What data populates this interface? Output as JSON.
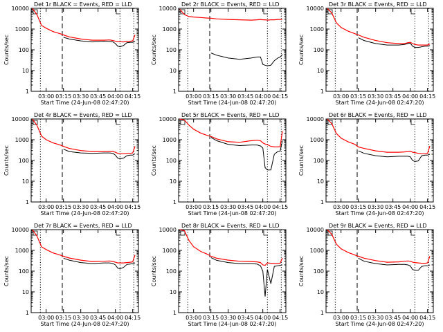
{
  "panel_titles": [
    "Det 1r BLACK = Events, RED = LLD",
    "Det 2r BLACK = Events, RED = LLD",
    "Det 3r BLACK = Events, RED = LLD",
    "Det 4r BLACK = Events, RED = LLD",
    "Det 5r BLACK = Events, RED = LLD",
    "Det 6r BLACK = Events, RED = LLD",
    "Det 7r BLACK = Events, RED = LLD",
    "Det 8r BLACK = Events, RED = LLD",
    "Det 9r BLACK = Events, RED = LLD"
  ],
  "xlabel": "Start Time (24-Jun-08 02:47:20)",
  "ylabel": "Counts/sec",
  "colors": {
    "events": "#000000",
    "lld": "#ff0000",
    "background": "#ffffff"
  },
  "chart_data": [
    {
      "type": "line",
      "title": "Det 1r BLACK = Events, RED = LLD",
      "xlabel": "Start Time (24-Jun-08 02:47:20)",
      "ylabel": "Counts/sec",
      "yscale": "log",
      "ylim": [
        1,
        10000
      ],
      "xticks": [
        "03:00",
        "03:15",
        "03:30",
        "03:45",
        "04:00",
        "04:15"
      ],
      "yticks": [
        "1",
        "10",
        "100",
        "1000",
        "10000"
      ],
      "vlines_dotted": [
        "02:55",
        "04:04",
        "04:16"
      ],
      "vlines_dashed": [
        "03:14"
      ],
      "x": [
        "02:48",
        "02:52",
        "02:56",
        "03:00",
        "03:06",
        "03:12",
        "03:15",
        "03:20",
        "03:30",
        "03:40",
        "03:50",
        "03:55",
        "03:58",
        "04:00",
        "04:02",
        "04:04",
        "04:07",
        "04:10",
        "04:13",
        "04:15",
        "04:17"
      ],
      "series": [
        {
          "name": "Events",
          "values": [
            null,
            null,
            null,
            null,
            null,
            null,
            400,
            330,
            270,
            240,
            260,
            250,
            240,
            200,
            150,
            140,
            160,
            220,
            230,
            230,
            250
          ]
        },
        {
          "name": "LLD",
          "values": [
            10000,
            5000,
            1500,
            1100,
            750,
            600,
            520,
            420,
            330,
            290,
            290,
            300,
            280,
            260,
            250,
            245,
            240,
            260,
            260,
            270,
            520
          ]
        }
      ]
    },
    {
      "type": "line",
      "title": "Det 2r BLACK = Events, RED = LLD",
      "xlabel": "Start Time (24-Jun-08 02:47:20)",
      "ylabel": "Counts/sec",
      "yscale": "log",
      "ylim": [
        1,
        10000
      ],
      "xticks": [
        "03:00",
        "03:15",
        "03:30",
        "03:45",
        "04:00",
        "04:15"
      ],
      "yticks": [
        "1",
        "10",
        "100",
        "1000",
        "10000"
      ],
      "vlines_dotted": [
        "02:55",
        "04:04",
        "04:16"
      ],
      "vlines_dashed": [
        "03:14"
      ],
      "x": [
        "02:48",
        "02:52",
        "02:56",
        "03:00",
        "03:06",
        "03:12",
        "03:15",
        "03:20",
        "03:30",
        "03:40",
        "03:50",
        "03:55",
        "03:58",
        "04:00",
        "04:02",
        "04:04",
        "04:07",
        "04:10",
        "04:13",
        "04:15",
        "04:17"
      ],
      "series": [
        {
          "name": "Events",
          "values": [
            null,
            null,
            null,
            null,
            null,
            null,
            70,
            55,
            40,
            35,
            40,
            45,
            45,
            20,
            18,
            17,
            18,
            30,
            40,
            45,
            60
          ]
        },
        {
          "name": "LLD",
          "values": [
            9000,
            5000,
            4000,
            3800,
            3600,
            3400,
            3300,
            3100,
            2900,
            2800,
            2700,
            2800,
            2900,
            2800,
            2800,
            2700,
            2800,
            2800,
            2900,
            2900,
            3000
          ]
        }
      ]
    },
    {
      "type": "line",
      "title": "Det 3r BLACK = Events, RED = LLD",
      "xlabel": "Start Time (24-Jun-08 02:47:20)",
      "ylabel": "Counts/sec",
      "yscale": "log",
      "ylim": [
        1,
        10000
      ],
      "xticks": [
        "03:00",
        "03:15",
        "03:30",
        "03:45",
        "04:00",
        "04:15"
      ],
      "yticks": [
        "1",
        "10",
        "100",
        "1000",
        "10000"
      ],
      "vlines_dotted": [
        "02:55",
        "04:04",
        "04:16"
      ],
      "vlines_dashed": [
        "03:14"
      ],
      "x": [
        "02:48",
        "02:52",
        "02:56",
        "03:00",
        "03:06",
        "03:12",
        "03:15",
        "03:20",
        "03:30",
        "03:40",
        "03:50",
        "03:55",
        "03:58",
        "04:00",
        "04:02",
        "04:04",
        "04:07",
        "04:10",
        "04:13",
        "04:15",
        "04:17"
      ],
      "series": [
        {
          "name": "Events",
          "values": [
            null,
            null,
            null,
            null,
            null,
            null,
            380,
            280,
            200,
            170,
            170,
            180,
            200,
            210,
            150,
            130,
            130,
            140,
            150,
            150,
            160
          ]
        },
        {
          "name": "LLD",
          "values": [
            10000,
            6000,
            2000,
            1200,
            800,
            600,
            520,
            400,
            280,
            220,
            200,
            200,
            220,
            230,
            200,
            180,
            170,
            170,
            170,
            170,
            190
          ]
        }
      ]
    },
    {
      "type": "line",
      "title": "Det 4r BLACK = Events, RED = LLD",
      "xlabel": "Start Time (24-Jun-08 02:47:20)",
      "ylabel": "Counts/sec",
      "yscale": "log",
      "ylim": [
        1,
        10000
      ],
      "xticks": [
        "03:00",
        "03:15",
        "03:30",
        "03:45",
        "04:00",
        "04:15"
      ],
      "yticks": [
        "1",
        "10",
        "100",
        "1000",
        "10000"
      ],
      "vlines_dotted": [
        "02:55",
        "04:04",
        "04:16"
      ],
      "vlines_dashed": [
        "03:14"
      ],
      "x": [
        "02:48",
        "02:52",
        "02:56",
        "03:00",
        "03:06",
        "03:12",
        "03:15",
        "03:20",
        "03:30",
        "03:40",
        "03:50",
        "03:55",
        "03:58",
        "04:00",
        "04:02",
        "04:04",
        "04:07",
        "04:10",
        "04:13",
        "04:15",
        "04:17"
      ],
      "series": [
        {
          "name": "Events",
          "values": [
            null,
            null,
            null,
            null,
            null,
            null,
            350,
            270,
            230,
            220,
            230,
            230,
            220,
            180,
            130,
            120,
            130,
            170,
            180,
            180,
            210
          ]
        },
        {
          "name": "LLD",
          "values": [
            10000,
            5000,
            1500,
            1000,
            700,
            560,
            480,
            380,
            300,
            270,
            270,
            280,
            270,
            250,
            220,
            210,
            210,
            220,
            220,
            230,
            480
          ]
        }
      ]
    },
    {
      "type": "line",
      "title": "Det 5r BLACK = Events, RED = LLD",
      "xlabel": "Start Time (24-Jun-08 02:47:20)",
      "ylabel": "Counts/sec",
      "yscale": "log",
      "ylim": [
        1,
        10000
      ],
      "xticks": [
        "03:00",
        "03:15",
        "03:30",
        "03:45",
        "04:00",
        "04:15"
      ],
      "yticks": [
        "1",
        "10",
        "100",
        "1000",
        "10000"
      ],
      "vlines_dotted": [
        "02:55",
        "04:04",
        "04:16"
      ],
      "vlines_dashed": [
        "03:14"
      ],
      "x": [
        "02:48",
        "02:52",
        "02:56",
        "03:00",
        "03:06",
        "03:12",
        "03:15",
        "03:20",
        "03:30",
        "03:40",
        "03:50",
        "03:55",
        "03:58",
        "04:00",
        "04:02",
        "04:04",
        "04:07",
        "04:10",
        "04:13",
        "04:15",
        "04:17"
      ],
      "series": [
        {
          "name": "Events",
          "values": [
            null,
            null,
            null,
            null,
            null,
            null,
            1300,
            900,
            600,
            520,
            560,
            560,
            500,
            400,
            45,
            35,
            35,
            200,
            270,
            280,
            900
          ]
        },
        {
          "name": "LLD",
          "values": [
            10000,
            9000,
            5000,
            3200,
            2100,
            1600,
            1450,
            1100,
            800,
            750,
            900,
            950,
            900,
            700,
            620,
            580,
            480,
            450,
            450,
            460,
            2600
          ]
        }
      ]
    },
    {
      "type": "line",
      "title": "Det 6r BLACK = Events, RED = LLD",
      "xlabel": "Start Time (24-Jun-08 02:47:20)",
      "ylabel": "Counts/sec",
      "yscale": "log",
      "ylim": [
        1,
        10000
      ],
      "xticks": [
        "03:00",
        "03:15",
        "03:30",
        "03:45",
        "04:00",
        "04:15"
      ],
      "yticks": [
        "1",
        "10",
        "100",
        "1000",
        "10000"
      ],
      "vlines_dotted": [
        "02:55",
        "04:04",
        "04:16"
      ],
      "vlines_dashed": [
        "03:14"
      ],
      "x": [
        "02:48",
        "02:52",
        "02:56",
        "03:00",
        "03:06",
        "03:12",
        "03:15",
        "03:20",
        "03:30",
        "03:40",
        "03:50",
        "03:55",
        "03:58",
        "04:00",
        "04:02",
        "04:04",
        "04:07",
        "04:10",
        "04:13",
        "04:15",
        "04:17"
      ],
      "series": [
        {
          "name": "Events",
          "values": [
            null,
            null,
            null,
            null,
            null,
            null,
            290,
            220,
            170,
            150,
            160,
            160,
            160,
            150,
            100,
            90,
            95,
            170,
            180,
            180,
            200
          ]
        },
        {
          "name": "LLD",
          "values": [
            10000,
            6000,
            2000,
            1200,
            800,
            600,
            450,
            380,
            290,
            250,
            250,
            260,
            270,
            280,
            250,
            240,
            220,
            210,
            210,
            220,
            500
          ]
        }
      ]
    },
    {
      "type": "line",
      "title": "Det 7r BLACK = Events, RED = LLD",
      "xlabel": "Start Time (24-Jun-08 02:47:20)",
      "ylabel": "Counts/sec",
      "yscale": "log",
      "ylim": [
        1,
        10000
      ],
      "xticks": [
        "03:00",
        "03:15",
        "03:30",
        "03:45",
        "04:00",
        "04:15"
      ],
      "yticks": [
        "1",
        "10",
        "100",
        "1000",
        "10000"
      ],
      "vlines_dotted": [
        "02:55",
        "04:04",
        "04:16"
      ],
      "vlines_dashed": [
        "03:14"
      ],
      "x": [
        "02:48",
        "02:52",
        "02:56",
        "03:00",
        "03:06",
        "03:12",
        "03:15",
        "03:20",
        "03:30",
        "03:40",
        "03:50",
        "03:55",
        "03:58",
        "04:00",
        "04:02",
        "04:04",
        "04:07",
        "04:10",
        "04:13",
        "04:15",
        "04:17"
      ],
      "series": [
        {
          "name": "Events",
          "values": [
            null,
            null,
            null,
            null,
            null,
            null,
            420,
            340,
            260,
            230,
            250,
            250,
            230,
            200,
            140,
            130,
            150,
            210,
            220,
            230,
            250
          ]
        },
        {
          "name": "LLD",
          "values": [
            10000,
            5000,
            1500,
            1100,
            750,
            600,
            520,
            430,
            340,
            290,
            300,
            310,
            290,
            270,
            250,
            250,
            250,
            260,
            270,
            280,
            600
          ]
        }
      ]
    },
    {
      "type": "line",
      "title": "Det 8r BLACK = Events, RED = LLD",
      "xlabel": "Start Time (24-Jun-08 02:47:20)",
      "ylabel": "Counts/sec",
      "yscale": "log",
      "ylim": [
        1,
        10000
      ],
      "xticks": [
        "03:00",
        "03:15",
        "03:30",
        "03:45",
        "04:00",
        "04:15"
      ],
      "yticks": [
        "1",
        "10",
        "100",
        "1000",
        "10000"
      ],
      "vlines_dotted": [
        "02:55",
        "04:04",
        "04:16"
      ],
      "vlines_dashed": [
        "03:14"
      ],
      "x": [
        "02:48",
        "02:52",
        "02:56",
        "03:00",
        "03:06",
        "03:12",
        "03:15",
        "03:20",
        "03:30",
        "03:40",
        "03:50",
        "03:55",
        "03:58",
        "04:00",
        "04:02",
        "04:04",
        "04:07",
        "04:10",
        "04:13",
        "04:15",
        "04:17"
      ],
      "series": [
        {
          "name": "Events",
          "values": [
            null,
            null,
            null,
            null,
            null,
            null,
            450,
            330,
            260,
            230,
            230,
            220,
            180,
            100,
            6,
            120,
            25,
            170,
            180,
            190,
            200
          ]
        },
        {
          "name": "LLD",
          "values": [
            10000,
            9000,
            3000,
            1500,
            900,
            650,
            520,
            420,
            340,
            300,
            290,
            280,
            260,
            200,
            190,
            250,
            240,
            230,
            230,
            240,
            430
          ]
        }
      ]
    },
    {
      "type": "line",
      "title": "Det 9r BLACK = Events, RED = LLD",
      "xlabel": "Start Time (24-Jun-08 02:47:20)",
      "ylabel": "Counts/sec",
      "yscale": "log",
      "ylim": [
        1,
        10000
      ],
      "xticks": [
        "03:00",
        "03:15",
        "03:30",
        "03:45",
        "04:00",
        "04:15"
      ],
      "yticks": [
        "1",
        "10",
        "100",
        "1000",
        "10000"
      ],
      "vlines_dotted": [
        "02:55",
        "04:04",
        "04:16"
      ],
      "vlines_dashed": [
        "03:14"
      ],
      "x": [
        "02:48",
        "02:52",
        "02:56",
        "03:00",
        "03:06",
        "03:12",
        "03:15",
        "03:20",
        "03:30",
        "03:40",
        "03:50",
        "03:55",
        "03:58",
        "04:00",
        "04:02",
        "04:04",
        "04:07",
        "04:10",
        "04:13",
        "04:15",
        "04:17"
      ],
      "series": [
        {
          "name": "Events",
          "values": [
            null,
            null,
            null,
            null,
            null,
            null,
            420,
            300,
            230,
            200,
            210,
            210,
            200,
            180,
            120,
            110,
            110,
            170,
            180,
            180,
            200
          ]
        },
        {
          "name": "LLD",
          "values": [
            10000,
            6000,
            2000,
            1200,
            800,
            600,
            520,
            420,
            320,
            270,
            280,
            300,
            310,
            300,
            270,
            260,
            250,
            240,
            240,
            250,
            530
          ]
        }
      ]
    }
  ]
}
